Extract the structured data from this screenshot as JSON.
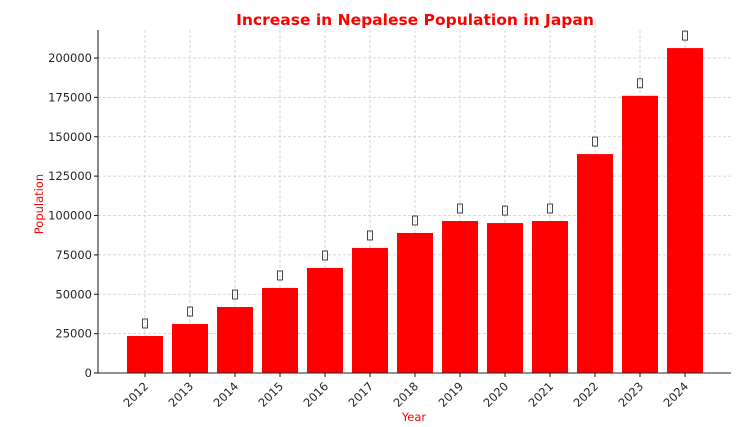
{
  "chart_data": {
    "type": "bar",
    "title": "Increase in Nepalese Population in Japan",
    "xlabel": "Year",
    "ylabel": "Population",
    "categories": [
      "2012",
      "2013",
      "2014",
      "2015",
      "2016",
      "2017",
      "2018",
      "2019",
      "2020",
      "2021",
      "2022",
      "2023",
      "2024"
    ],
    "values": [
      23500,
      31100,
      41900,
      54000,
      66700,
      79400,
      88900,
      96500,
      95200,
      96500,
      139000,
      176000,
      206300
    ],
    "bar_labels": [
      "▯",
      "▯",
      "▯",
      "▯",
      "▯",
      "▯",
      "▯",
      "▯",
      "▯",
      "▯",
      "▯",
      "▯",
      "▯"
    ],
    "ylim": [
      0,
      218000
    ],
    "yticks": [
      0,
      25000,
      50000,
      75000,
      100000,
      125000,
      150000,
      175000,
      200000
    ],
    "ytick_labels": [
      "0",
      "25000",
      "50000",
      "75000",
      "100000",
      "125000",
      "150000",
      "175000",
      "200000"
    ],
    "grid": true,
    "bar_color": "#ff0000",
    "title_color": "#ff0000",
    "label_color": "#ff0000",
    "legend": "none"
  }
}
